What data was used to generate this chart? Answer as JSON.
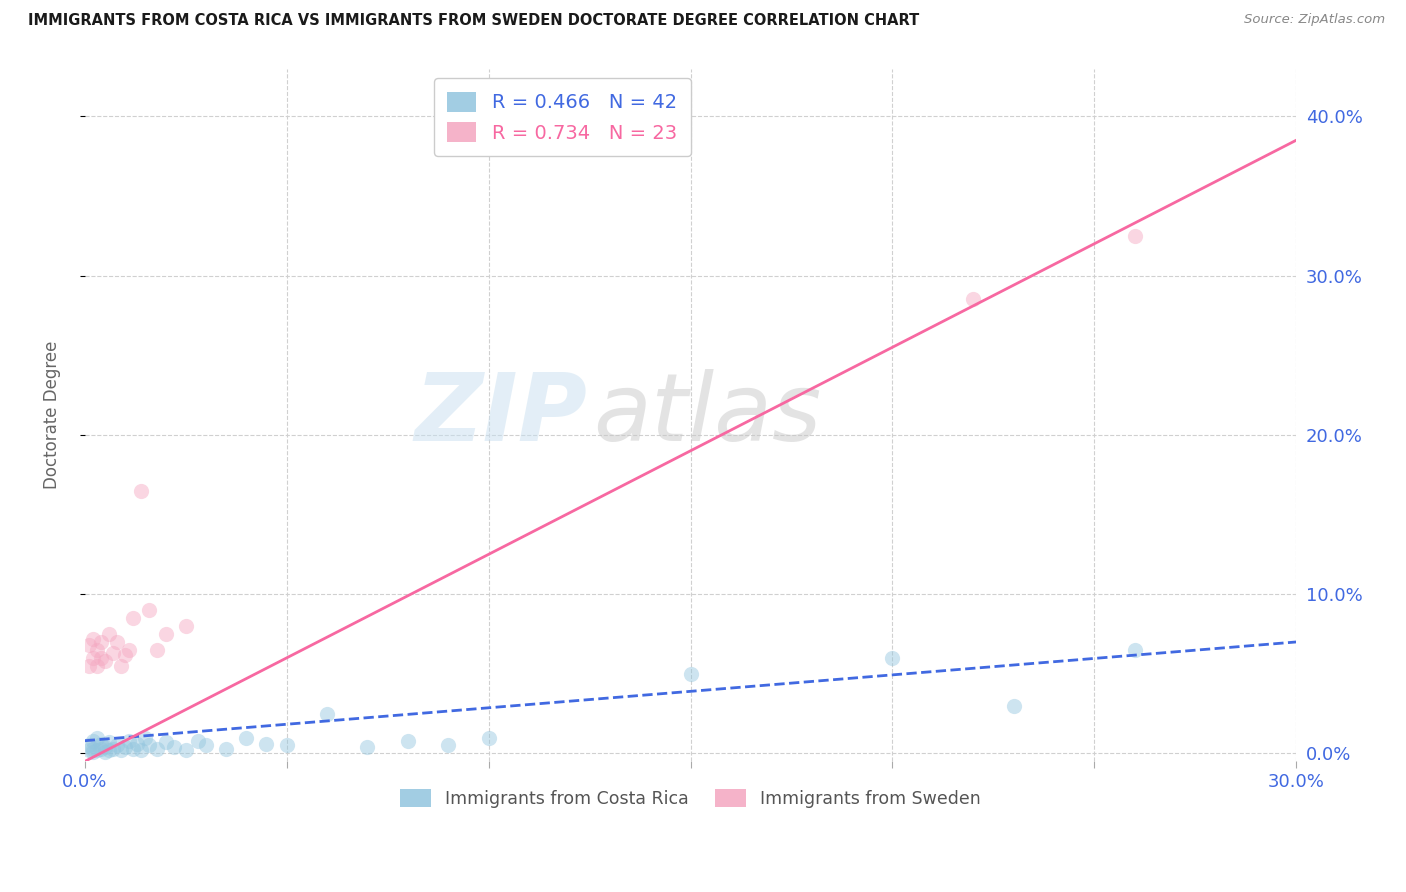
{
  "title": "IMMIGRANTS FROM COSTA RICA VS IMMIGRANTS FROM SWEDEN DOCTORATE DEGREE CORRELATION CHART",
  "source": "Source: ZipAtlas.com",
  "ylabel": "Doctorate Degree",
  "xlim": [
    0.0,
    0.3
  ],
  "ylim": [
    -0.005,
    0.43
  ],
  "legend1_label": "R = 0.466   N = 42",
  "legend2_label": "R = 0.734   N = 23",
  "legend_color1": "#92c5de",
  "legend_color2": "#f4a6c0",
  "watermark_zip": "ZIP",
  "watermark_atlas": "atlas",
  "title_fontsize": 11,
  "axis_tick_color": "#4169E1",
  "blue_scatter_x": [
    0.001,
    0.001,
    0.002,
    0.002,
    0.002,
    0.003,
    0.003,
    0.004,
    0.004,
    0.005,
    0.005,
    0.006,
    0.006,
    0.007,
    0.008,
    0.009,
    0.01,
    0.011,
    0.012,
    0.013,
    0.014,
    0.015,
    0.016,
    0.018,
    0.02,
    0.022,
    0.025,
    0.028,
    0.03,
    0.035,
    0.04,
    0.045,
    0.05,
    0.06,
    0.07,
    0.08,
    0.09,
    0.1,
    0.15,
    0.2,
    0.23,
    0.26
  ],
  "blue_scatter_y": [
    0.002,
    0.005,
    0.001,
    0.003,
    0.008,
    0.002,
    0.01,
    0.003,
    0.006,
    0.001,
    0.004,
    0.002,
    0.007,
    0.003,
    0.005,
    0.002,
    0.004,
    0.008,
    0.003,
    0.006,
    0.002,
    0.01,
    0.005,
    0.003,
    0.007,
    0.004,
    0.002,
    0.008,
    0.005,
    0.003,
    0.01,
    0.006,
    0.005,
    0.025,
    0.004,
    0.008,
    0.005,
    0.01,
    0.05,
    0.06,
    0.03,
    0.065
  ],
  "pink_scatter_x": [
    0.001,
    0.001,
    0.002,
    0.002,
    0.003,
    0.003,
    0.004,
    0.004,
    0.005,
    0.006,
    0.007,
    0.008,
    0.009,
    0.01,
    0.011,
    0.012,
    0.014,
    0.016,
    0.018,
    0.02,
    0.025,
    0.22,
    0.26
  ],
  "pink_scatter_y": [
    0.055,
    0.068,
    0.06,
    0.072,
    0.065,
    0.055,
    0.06,
    0.07,
    0.058,
    0.075,
    0.063,
    0.07,
    0.055,
    0.062,
    0.065,
    0.085,
    0.165,
    0.09,
    0.065,
    0.075,
    0.08,
    0.285,
    0.325
  ],
  "blue_line_x": [
    0.0,
    0.3
  ],
  "blue_line_y": [
    0.008,
    0.07
  ],
  "pink_line_x": [
    0.0,
    0.3
  ],
  "pink_line_y": [
    -0.005,
    0.385
  ],
  "blue_line_color": "#4169E1",
  "pink_line_color": "#f768a1",
  "blue_dash": "dashed",
  "pink_dash": "solid",
  "scatter_size": 120,
  "scatter_alpha": 0.45,
  "grid_color": "#d0d0d0",
  "grid_style": "dashed",
  "bg_color": "#ffffff",
  "legend_xlabel": [
    "Immigrants from Costa Rica",
    "Immigrants from Sweden"
  ],
  "x_ticks": [
    0.0,
    0.05,
    0.1,
    0.15,
    0.2,
    0.25,
    0.3
  ],
  "x_tick_labels": [
    "0.0%",
    "",
    "",
    "",
    "",
    "",
    "30.0%"
  ],
  "y_ticks": [
    0.0,
    0.1,
    0.2,
    0.3,
    0.4
  ],
  "y_tick_labels": [
    "0.0%",
    "10.0%",
    "20.0%",
    "30.0%",
    "40.0%"
  ]
}
